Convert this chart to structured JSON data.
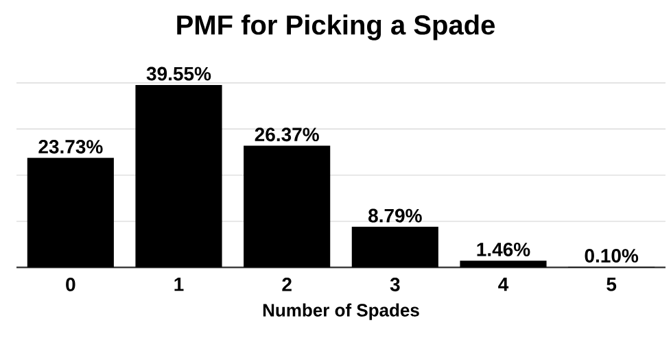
{
  "chart_data": {
    "type": "bar",
    "title": "PMF for Picking a Spade",
    "xlabel": "Number of Spades",
    "categories": [
      "0",
      "1",
      "2",
      "3",
      "4",
      "5"
    ],
    "values": [
      23.73,
      39.55,
      26.37,
      8.79,
      1.46,
      0.1
    ],
    "value_labels": [
      "23.73%",
      "39.55%",
      "26.37%",
      "8.79%",
      "1.46%",
      "0.10%"
    ],
    "color": "#000000",
    "grid": "y",
    "tick_labels": "x"
  }
}
